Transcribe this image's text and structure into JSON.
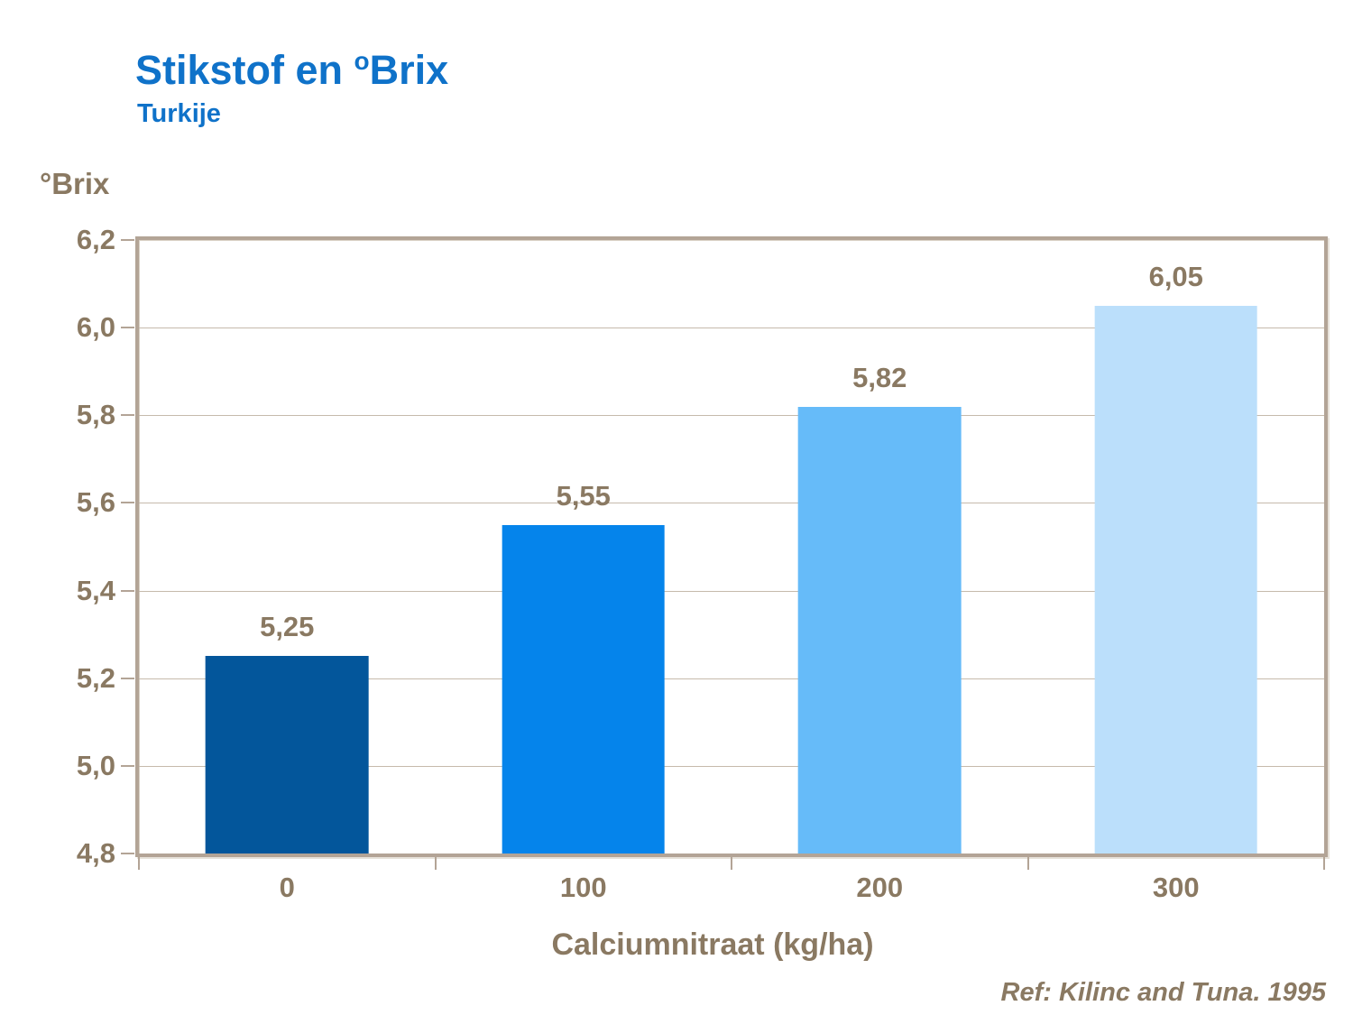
{
  "header": {
    "title_main": "Stikstof en ",
    "title_sup": "o",
    "title_rest": "Brix",
    "subtitle": "Turkije"
  },
  "colors": {
    "title_blue": "#0F72C9",
    "text_brown": "#8A7962",
    "axis_tan": "#B3A496",
    "gridline": "#C6BAAC"
  },
  "chart_data": {
    "type": "bar",
    "title": "Stikstof en °Brix",
    "subtitle": "Turkije",
    "categories": [
      "0",
      "100",
      "200",
      "300"
    ],
    "values": [
      5.25,
      5.55,
      5.82,
      6.05
    ],
    "value_labels": [
      "5,25",
      "5,55",
      "5,82",
      "6,05"
    ],
    "bar_colors": [
      "#03569B",
      "#0584EB",
      "#66BBF9",
      "#BBDFFB"
    ],
    "xlabel": "Calciumnitraat (kg/ha)",
    "ylabel": "°Brix",
    "ylim": [
      4.8,
      6.2
    ],
    "yticks": [
      {
        "value": 6.2,
        "label": "6,2"
      },
      {
        "value": 6.0,
        "label": "6,0"
      },
      {
        "value": 5.8,
        "label": "5,8"
      },
      {
        "value": 5.6,
        "label": "5,6"
      },
      {
        "value": 5.4,
        "label": "5,4"
      },
      {
        "value": 5.2,
        "label": "5,2"
      },
      {
        "value": 5.0,
        "label": "5,0"
      },
      {
        "value": 4.8,
        "label": "4,8"
      }
    ],
    "grid": true,
    "legend": "none",
    "ref": "Ref: Kilinc and Tuna. 1995"
  }
}
